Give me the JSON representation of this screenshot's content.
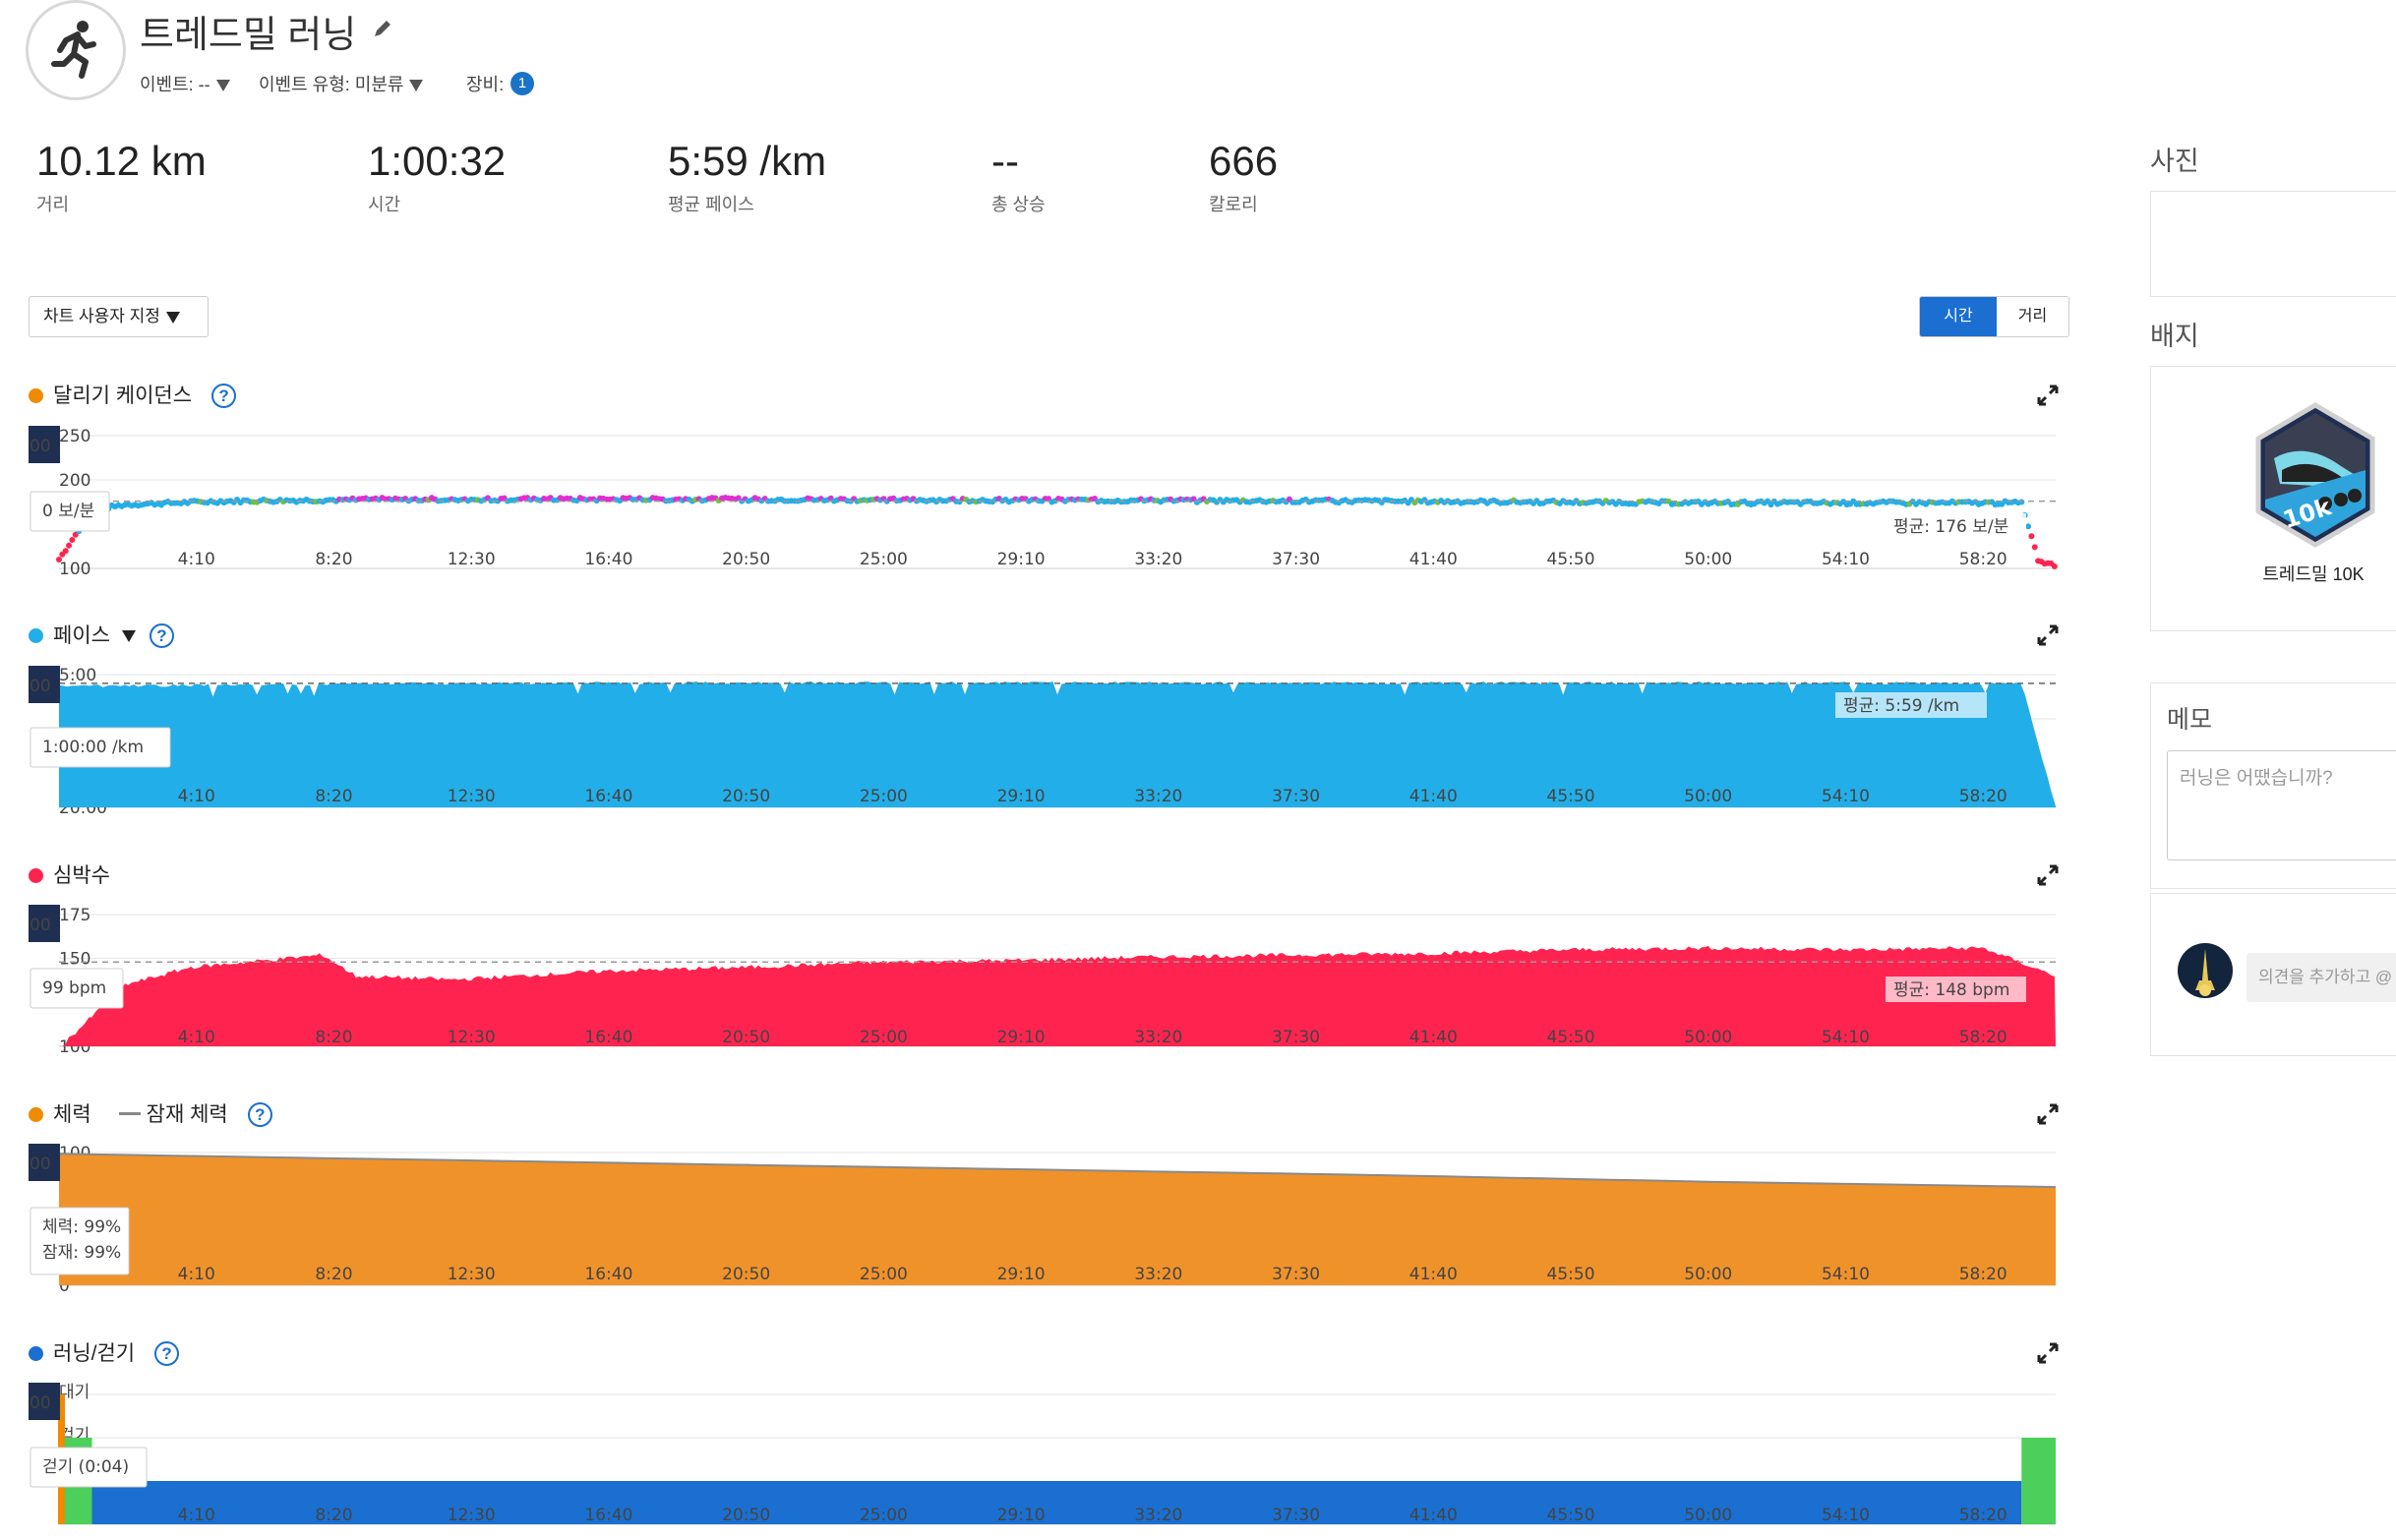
{
  "header": {
    "title": "트레드밀 러닝",
    "event_label": "이벤트: --",
    "event_type_label": "이벤트 유형: 미분류",
    "gear_label": "장비:",
    "gear_count": "1"
  },
  "stats": [
    {
      "value": "10.12 km",
      "label": "거리"
    },
    {
      "value": "1:00:32",
      "label": "시간"
    },
    {
      "value": "5:59 /km",
      "label": "평균 페이스"
    },
    {
      "value": "--",
      "label": "총 상승"
    },
    {
      "value": "666",
      "label": "칼로리"
    }
  ],
  "toolbar": {
    "customize_label": "차트 사용자 지정",
    "toggle_time": "시간",
    "toggle_distance": "거리"
  },
  "x_ticks": [
    "4:10",
    "8:20",
    "12:30",
    "16:40",
    "20:50",
    "25:00",
    "29:10",
    "33:20",
    "37:30",
    "41:40",
    "45:50",
    "50:00",
    "54:10",
    "58:20"
  ],
  "colors": {
    "cadence": "#f08a00",
    "pace": "#22aee8",
    "heart_rate": "#ff2450",
    "stamina": "#f08a00",
    "run_walk": "#1a6fd0",
    "walk": "#4ccf5b",
    "accent": "#1a6fd0"
  },
  "sections": {
    "cadence": {
      "title": "달리기 케이던스",
      "y_ticks": [
        "250",
        "200",
        "100"
      ],
      "cursor_label": "00",
      "tooltip": "0 보/분",
      "avg_label": "평균: 176 보/분"
    },
    "pace": {
      "title": "페이스",
      "y_ticks": [
        "5:00",
        "10:00",
        "20:00"
      ],
      "cursor_label": "00",
      "tooltip": "1:00:00 /km",
      "avg_label": "평균: 5:59 /km"
    },
    "heart_rate": {
      "title": "심박수",
      "y_ticks": [
        "175",
        "150",
        "100"
      ],
      "cursor_label": "00",
      "tooltip": "99 bpm",
      "avg_label": "평균: 148 bpm"
    },
    "stamina": {
      "title": "체력",
      "legend_potential": "잠재 체력",
      "y_ticks": [
        "100",
        "0"
      ],
      "cursor_label": "00",
      "tooltip_line1": "체력: 99%",
      "tooltip_line2": "잠재: 99%"
    },
    "run_walk": {
      "title": "러닝/걷기",
      "y_ticks": [
        "대기",
        "걷기"
      ],
      "cursor_label": "00",
      "tooltip": "걷기 (0:04)"
    }
  },
  "chart_data": [
    {
      "type": "scatter",
      "title": "달리기 케이던스",
      "unit": "보/분",
      "x_unit": "elapsed time",
      "ylim": [
        100,
        250
      ],
      "average": 176,
      "series": [
        {
          "values": [
            {
              "t": "0:00",
              "y": 110
            },
            {
              "t": "1:00",
              "y": 166
            },
            {
              "t": "2:00",
              "y": 172
            },
            {
              "t": "5:00",
              "y": 176
            },
            {
              "t": "10:00",
              "y": 178
            },
            {
              "t": "20:00",
              "y": 178
            },
            {
              "t": "30:00",
              "y": 177
            },
            {
              "t": "40:00",
              "y": 176
            },
            {
              "t": "50:00",
              "y": 174
            },
            {
              "t": "59:30",
              "y": 174
            },
            {
              "t": "60:00",
              "y": 110
            },
            {
              "t": "60:32",
              "y": 102
            }
          ]
        }
      ]
    },
    {
      "type": "area",
      "title": "페이스",
      "unit": "/km",
      "ylim": [
        "5:00",
        "20:00"
      ],
      "average": "5:59",
      "series": [
        {
          "values": [
            {
              "t": "0:00",
              "y": "6:20"
            },
            {
              "t": "5:00",
              "y": "6:10"
            },
            {
              "t": "10:00",
              "y": "6:00"
            },
            {
              "t": "20:00",
              "y": "5:55"
            },
            {
              "t": "30:00",
              "y": "5:55"
            },
            {
              "t": "40:00",
              "y": "5:58"
            },
            {
              "t": "50:00",
              "y": "5:55"
            },
            {
              "t": "59:30",
              "y": "6:00"
            },
            {
              "t": "60:32",
              "y": "20:00"
            }
          ]
        }
      ]
    },
    {
      "type": "area",
      "title": "심박수",
      "unit": "bpm",
      "ylim": [
        100,
        175
      ],
      "average": 148,
      "series": [
        {
          "values": [
            {
              "t": "0:00",
              "y": 99
            },
            {
              "t": "2:00",
              "y": 135
            },
            {
              "t": "4:00",
              "y": 145
            },
            {
              "t": "8:00",
              "y": 152
            },
            {
              "t": "9:00",
              "y": 140
            },
            {
              "t": "12:00",
              "y": 138
            },
            {
              "t": "16:40",
              "y": 143
            },
            {
              "t": "20:50",
              "y": 145
            },
            {
              "t": "25:00",
              "y": 148
            },
            {
              "t": "29:10",
              "y": 149
            },
            {
              "t": "33:20",
              "y": 151
            },
            {
              "t": "37:30",
              "y": 152
            },
            {
              "t": "41:40",
              "y": 153
            },
            {
              "t": "45:50",
              "y": 155
            },
            {
              "t": "50:00",
              "y": 156
            },
            {
              "t": "54:10",
              "y": 155
            },
            {
              "t": "58:20",
              "y": 156
            },
            {
              "t": "60:32",
              "y": 140
            }
          ]
        }
      ]
    },
    {
      "type": "area",
      "title": "체력",
      "unit": "%",
      "ylim": [
        0,
        100
      ],
      "series": [
        {
          "name": "체력",
          "values": [
            {
              "t": "0:00",
              "y": 99
            },
            {
              "t": "10:00",
              "y": 95
            },
            {
              "t": "20:00",
              "y": 91
            },
            {
              "t": "30:00",
              "y": 87
            },
            {
              "t": "40:00",
              "y": 83
            },
            {
              "t": "50:00",
              "y": 78
            },
            {
              "t": "60:32",
              "y": 74
            }
          ]
        },
        {
          "name": "잠재 체력",
          "values": [
            {
              "t": "0:00",
              "y": 99
            },
            {
              "t": "60:32",
              "y": 74
            }
          ]
        }
      ]
    },
    {
      "type": "bar",
      "title": "러닝/걷기",
      "categories": [
        "대기",
        "걷기",
        "러닝"
      ],
      "segments": [
        {
          "state": "걷기",
          "start": "0:00",
          "end": "1:00"
        },
        {
          "state": "러닝",
          "start": "1:00",
          "end": "59:30"
        },
        {
          "state": "걷기",
          "start": "59:30",
          "end": "60:32"
        }
      ]
    }
  ],
  "sidebar": {
    "photos_title": "사진",
    "badges_title": "배지",
    "badge_name": "트레드밀 10K",
    "badge_text": "10k",
    "memo_title": "메모",
    "memo_placeholder": "러닝은 어땠습니까?",
    "comment_placeholder": "의견을 추가하고 @"
  }
}
